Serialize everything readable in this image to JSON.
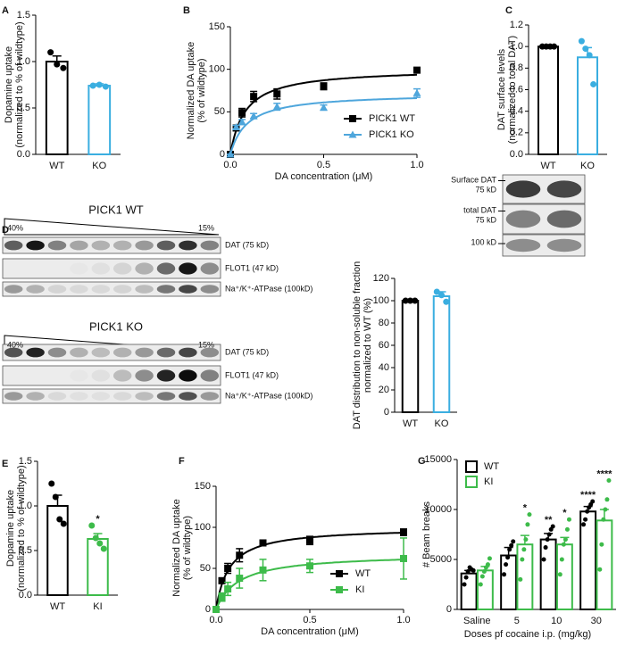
{
  "chart_data": [
    {
      "panel": "A",
      "type": "bar",
      "ylabel": [
        "Dopamine uptake",
        "(normalized to % of wildtype)"
      ],
      "categories": [
        "WT",
        "KO"
      ],
      "colors": [
        "#000000",
        "#3aaee0"
      ],
      "values": [
        1.0,
        0.74
      ],
      "errors": [
        0.06,
        0.02
      ],
      "points": [
        [
          1.1,
          0.97,
          0.93
        ],
        [
          0.74,
          0.75,
          0.73
        ]
      ],
      "ylim": [
        0,
        1.5
      ],
      "yticks": [
        {
          "value": 0,
          "label": "0.0"
        },
        {
          "value": 0.5,
          "label": "0.5"
        },
        {
          "value": 1,
          "label": "1.0"
        },
        {
          "value": 1.5,
          "label": "1.5"
        }
      ]
    },
    {
      "panel": "B",
      "type": "line",
      "ylabel": [
        "Normalized DA uptake",
        "(% of wildtype)"
      ],
      "xlabel": "DA concentration (μM)",
      "x": [
        0,
        0.03125,
        0.0625,
        0.125,
        0.25,
        0.5,
        1
      ],
      "series": [
        {
          "name": "PICK1 WT",
          "color": "#000000",
          "marker": "square",
          "values": [
            0,
            31,
            49,
            68,
            71,
            80,
            99
          ],
          "errors": [
            0,
            3,
            5,
            6,
            6,
            4,
            3
          ],
          "fit": {
            "vmax": 101,
            "km": 0.08
          }
        },
        {
          "name": "PICK1 KO",
          "color": "#4ea6dc",
          "marker": "triangle",
          "values": [
            0,
            32,
            38,
            45,
            56,
            55,
            72
          ],
          "errors": [
            0,
            2,
            3,
            3,
            4,
            3,
            5
          ],
          "fit": {
            "vmax": 72,
            "km": 0.09
          }
        }
      ],
      "xlim": [
        0,
        1
      ],
      "xticks": [
        {
          "value": 0,
          "label": "0.0"
        },
        {
          "value": 0.5,
          "label": "0.5"
        },
        {
          "value": 1,
          "label": "1.0"
        }
      ],
      "ylim": [
        0,
        150
      ],
      "yticks": [
        0,
        50,
        100,
        150
      ],
      "legend": "lower right"
    },
    {
      "panel": "C",
      "type": "bar",
      "ylabel": [
        "DAT surface levels",
        "(normalized to total DAT)"
      ],
      "categories": [
        "WT",
        "KO"
      ],
      "colors": [
        "#000000",
        "#3aaee0"
      ],
      "values": [
        1.0,
        0.9
      ],
      "errors": [
        0,
        0.09
      ],
      "points": [
        [
          1,
          1,
          1,
          1
        ],
        [
          1.05,
          0.98,
          0.92,
          0.65
        ]
      ],
      "ylim": [
        0,
        1.2
      ],
      "yticks": [
        {
          "value": 0,
          "label": "0.0"
        },
        {
          "value": 0.2,
          "label": "0.2"
        },
        {
          "value": 0.4,
          "label": "0.4"
        },
        {
          "value": 0.6,
          "label": "0.6"
        },
        {
          "value": 0.8,
          "label": "0.8"
        },
        {
          "value": 1,
          "label": "1.0"
        },
        {
          "value": 1.2,
          "label": "1.2"
        }
      ]
    },
    {
      "panel": "D",
      "type": "bar",
      "ylabel": [
        "DAT distribution to non-soluble fraction",
        "normalized to WT (%)"
      ],
      "categories": [
        "WT",
        "KO"
      ],
      "colors": [
        "#000000",
        "#3aaee0"
      ],
      "values": [
        100,
        104
      ],
      "errors": [
        0,
        4
      ],
      "points": [
        [
          100,
          100,
          100
        ],
        [
          108,
          105,
          99
        ]
      ],
      "ylim": [
        0,
        120
      ],
      "yticks": [
        0,
        20,
        40,
        60,
        80,
        100,
        120
      ]
    },
    {
      "panel": "E",
      "type": "bar",
      "ylabel": [
        "Dopamine uptake",
        "(normalized to % of wildtype)"
      ],
      "categories": [
        "WT",
        "KI"
      ],
      "colors": [
        "#000000",
        "#3dbb4a"
      ],
      "values": [
        1.0,
        0.63
      ],
      "errors": [
        0.12,
        0.06
      ],
      "points": [
        [
          1.25,
          1.1,
          0.85,
          0.8
        ],
        [
          0.78,
          0.64,
          0.58,
          0.52
        ]
      ],
      "stars": [
        null,
        "*"
      ],
      "ylim": [
        0,
        1.5
      ],
      "yticks": [
        {
          "value": 0,
          "label": "0.0"
        },
        {
          "value": 0.5,
          "label": "0.5"
        },
        {
          "value": 1,
          "label": "1.0"
        },
        {
          "value": 1.5,
          "label": "1.5"
        }
      ]
    },
    {
      "panel": "F",
      "type": "line",
      "ylabel": [
        "Normalized DA uptake",
        "(% of wildtype)"
      ],
      "xlabel": "DA concentration (μM)",
      "x": [
        0,
        0.03125,
        0.0625,
        0.125,
        0.25,
        0.5,
        1
      ],
      "series": [
        {
          "name": "WT",
          "color": "#000000",
          "marker": "square",
          "values": [
            0,
            35,
            50,
            66,
            81,
            84,
            94
          ],
          "errors": [
            0,
            3,
            6,
            8,
            3,
            5,
            4
          ],
          "fit": {
            "vmax": 100,
            "km": 0.07
          }
        },
        {
          "name": "KI",
          "color": "#3dbb4a",
          "marker": "square",
          "values": [
            0,
            15,
            25,
            38,
            48,
            53,
            62
          ],
          "errors": [
            0,
            5,
            8,
            12,
            13,
            8,
            25
          ],
          "fit": {
            "vmax": 68,
            "km": 0.12
          }
        }
      ],
      "xlim": [
        0,
        1
      ],
      "xticks": [
        {
          "value": 0,
          "label": "0.0"
        },
        {
          "value": 0.5,
          "label": "0.5"
        },
        {
          "value": 1,
          "label": "1.0"
        }
      ],
      "ylim": [
        0,
        150
      ],
      "yticks": [
        0,
        50,
        100,
        150
      ],
      "legend": "lower right"
    },
    {
      "panel": "G",
      "type": "bar",
      "ylabel": [
        "# Beam breaks"
      ],
      "xlabel": "Doses pf cocaine i.p. (mg/kg)",
      "categories": [
        "Saline",
        "5",
        "10",
        "30"
      ],
      "series": [
        {
          "name": "WT",
          "color": "#000000",
          "values": [
            3600,
            5400,
            7000,
            9800
          ],
          "errors": [
            300,
            800,
            600,
            500
          ],
          "points": [
            [
              2500,
              3200,
              3800,
              4200,
              4000,
              3900
            ],
            [
              3500,
              4500,
              5200,
              6000,
              6400,
              6800
            ],
            [
              5000,
              6200,
              7000,
              7500,
              8000,
              8300
            ],
            [
              8500,
              9000,
              9800,
              10200,
              10500,
              10800
            ]
          ],
          "stars": [
            null,
            null,
            "**",
            "****"
          ]
        },
        {
          "name": "KI",
          "color": "#3dbb4a",
          "values": [
            3900,
            6500,
            6500,
            8900
          ],
          "errors": [
            400,
            900,
            700,
            1100
          ],
          "points": [
            [
              2500,
              3300,
              3800,
              4200,
              4500,
              5100
            ],
            [
              3000,
              5000,
              6000,
              7000,
              8500,
              9500
            ],
            [
              3500,
              5000,
              6500,
              7000,
              8000,
              9000
            ],
            [
              4000,
              6500,
              9000,
              10000,
              11000,
              12900
            ]
          ],
          "stars": [
            null,
            "*",
            "*",
            "****"
          ]
        }
      ],
      "ylim": [
        0,
        15000
      ],
      "yticks": [
        0,
        5000,
        10000,
        15000
      ],
      "legend": "upper left"
    }
  ],
  "surface_blot": {
    "rows": [
      [
        "Surface DAT",
        "75 kD"
      ],
      [
        "total DAT",
        "75 kD"
      ],
      [
        "100 kD"
      ]
    ]
  },
  "blots": [
    {
      "title": "PICK1 WT",
      "gradient": [
        "40%",
        "15%"
      ],
      "rows": [
        "DAT (75 kD)",
        "FLOT1 (47 kD)",
        "Na⁺/K⁺-ATPase (100kD)"
      ]
    },
    {
      "title": "PICK1 KO",
      "gradient": [
        "40%",
        "15%"
      ],
      "rows": [
        "DAT (75 kD)",
        "FLOT1 (47 kD)",
        "Na⁺/K⁺-ATPase (100kD)"
      ]
    }
  ]
}
